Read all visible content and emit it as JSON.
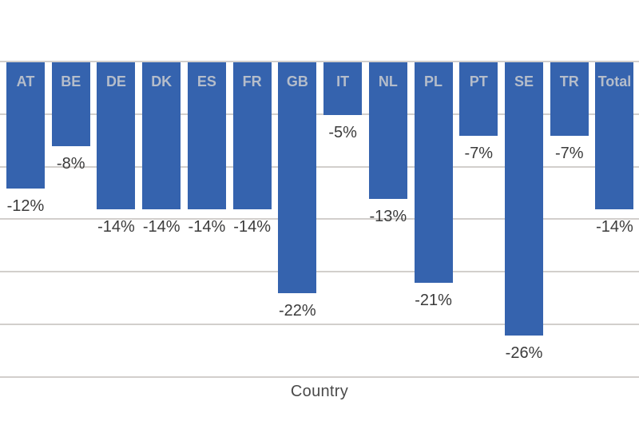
{
  "chart_data": {
    "type": "bar",
    "title": "",
    "xlabel": "Country",
    "ylabel": "",
    "categories": [
      "AT",
      "BE",
      "DE",
      "DK",
      "ES",
      "FR",
      "GB",
      "IT",
      "NL",
      "PL",
      "PT",
      "SE",
      "TR",
      "Total"
    ],
    "values": [
      -12,
      -8,
      -14,
      -14,
      -14,
      -14,
      -22,
      -5,
      -13,
      -21,
      -7,
      -26,
      -7,
      -14
    ],
    "value_labels": [
      "-12%",
      "-8%",
      "-14%",
      "-14%",
      "-14%",
      "-14%",
      "-22%",
      "-5%",
      "-13%",
      "-21%",
      "-7%",
      "-26%",
      "-7%",
      "-14%"
    ],
    "ylim": [
      -30,
      0
    ],
    "gridline_values": [
      0,
      -5,
      -10,
      -15,
      -20,
      -25,
      -30
    ],
    "grid": true,
    "legend": false,
    "orientation": "vertical-negative",
    "colors": {
      "bar": "#3563ae",
      "category_label": "#b5bdca",
      "value_label": "#3b3b3b",
      "gridline": "#d2cfcc",
      "axis_title": "#4a4a4a",
      "background": "#ffffff"
    }
  }
}
